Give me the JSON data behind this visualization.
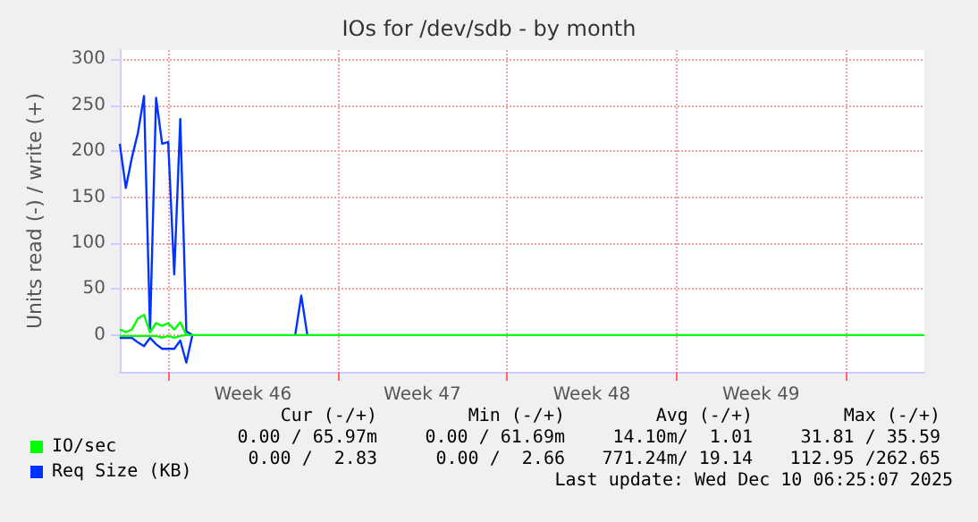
{
  "chart_data": {
    "type": "line",
    "title": "IOs for /dev/sdb - by month",
    "ylabel": "Units read (-) / write (+)",
    "categories": [
      null,
      null,
      null,
      null,
      null,
      null,
      null,
      null,
      null,
      null,
      null,
      null,
      null,
      null,
      null,
      null,
      null,
      null,
      null,
      null,
      null,
      null,
      "Week 46",
      null,
      null,
      null,
      null,
      null,
      null,
      null,
      null,
      null,
      null,
      null,
      null,
      null,
      null,
      null,
      null,
      null,
      null,
      null,
      null,
      null,
      null,
      null,
      null,
      null,
      null,
      null,
      "Week 47",
      null,
      null,
      null,
      null,
      null,
      null,
      null,
      null,
      null,
      null,
      null,
      null,
      null,
      null,
      null,
      null,
      null,
      null,
      null,
      null,
      null,
      null,
      null,
      null,
      null,
      null,
      null,
      "Week 48",
      null,
      null,
      null,
      null,
      null,
      null,
      null,
      null,
      null,
      null,
      null,
      null,
      null,
      null,
      null,
      null,
      null,
      null,
      null,
      null,
      null,
      null,
      null,
      null,
      null,
      null,
      null,
      "Week 49",
      null,
      null,
      null,
      null,
      null,
      null,
      null,
      null,
      null,
      null,
      null,
      null,
      null,
      null,
      null,
      null,
      null,
      null,
      null,
      null,
      null,
      null,
      null,
      null,
      null,
      null,
      null
    ],
    "ylim": [
      -40,
      310
    ],
    "yticks": [
      0,
      50,
      100,
      150,
      200,
      250,
      300
    ],
    "grid": true,
    "legend": "bottom left",
    "marker": "none",
    "line_style": "solid",
    "series": [
      {
        "name": "IO/sec",
        "color": "#00ff00",
        "values": [
          6,
          3,
          6,
          18,
          22,
          3,
          13,
          10,
          13,
          6,
          14,
          0,
          0,
          0,
          0,
          0,
          0,
          0,
          0,
          0,
          0,
          0,
          0,
          0,
          0,
          0,
          0,
          0,
          0,
          0,
          0,
          0,
          0,
          0,
          0,
          0,
          0,
          0,
          0,
          0,
          0,
          0,
          0,
          0,
          0,
          0,
          0,
          0,
          0,
          0,
          0,
          0,
          0,
          0,
          0,
          0,
          0,
          0,
          0,
          0,
          0,
          0,
          0,
          0,
          0,
          0,
          0,
          0,
          0,
          0,
          0,
          0,
          0,
          0,
          0,
          0,
          0,
          0,
          0,
          0,
          0,
          0,
          0,
          0,
          0,
          0,
          0,
          0,
          0,
          0,
          0,
          0,
          0,
          0,
          0,
          0,
          0,
          0,
          0,
          0,
          0,
          0,
          0,
          0,
          0,
          0,
          0,
          0,
          0,
          0,
          0,
          0,
          0,
          0,
          0,
          0,
          0,
          0,
          0,
          0,
          0,
          0,
          0,
          0,
          0,
          0,
          0,
          0,
          0,
          0,
          0,
          0,
          0,
          0
        ]
      },
      {
        "color": "#00ff00",
        "values": [
          -1,
          -1,
          -1,
          -1,
          -1,
          -1,
          -1,
          -3,
          -1,
          -3,
          -1,
          0,
          null,
          null,
          null,
          null,
          null,
          null,
          null,
          null,
          null,
          null,
          null,
          null,
          null,
          null,
          null,
          null,
          null,
          null,
          null,
          null,
          null,
          null,
          null,
          null,
          null,
          null,
          null,
          null,
          null,
          null,
          null,
          null,
          null,
          null,
          null,
          null,
          null,
          null,
          null,
          null,
          null,
          null,
          null,
          null,
          null,
          null,
          null,
          null,
          null,
          null,
          null,
          null,
          null,
          null,
          null,
          null,
          null,
          null,
          null,
          null,
          null,
          null,
          null,
          null,
          null,
          null,
          null,
          null,
          null,
          null,
          null,
          null,
          null,
          null,
          null,
          null,
          null,
          null,
          null,
          null,
          null,
          null,
          null,
          null,
          null,
          null,
          null,
          null,
          null,
          null,
          null,
          null,
          null,
          null,
          null,
          null,
          null,
          null,
          null,
          null,
          null,
          null,
          null,
          null,
          null,
          null,
          null,
          null,
          null,
          null,
          null,
          null,
          null,
          null,
          null,
          null,
          null,
          null,
          null,
          null,
          null,
          null
        ]
      },
      {
        "name": "Req Size (KB)",
        "color": "#0033ff",
        "values": [
          208,
          160,
          193,
          220,
          260,
          4,
          258,
          208,
          210,
          66,
          235,
          4,
          0,
          null,
          null,
          null,
          null,
          null,
          null,
          null,
          null,
          null,
          null,
          null,
          null,
          null,
          null,
          null,
          null,
          0,
          43,
          0,
          null,
          null,
          null,
          null,
          null,
          null,
          null,
          null,
          null,
          null,
          null,
          null,
          null,
          null,
          null,
          null,
          null,
          null,
          null,
          null,
          null,
          null,
          null,
          null,
          null,
          null,
          null,
          null,
          null,
          null,
          null,
          null,
          null,
          null,
          null,
          null,
          null,
          null,
          null,
          null,
          null,
          null,
          null,
          null,
          null,
          null,
          null,
          null,
          null,
          null,
          null,
          null,
          null,
          null,
          null,
          null,
          null,
          null,
          null,
          null,
          null,
          null,
          null,
          null,
          null,
          null,
          null,
          null,
          null,
          null,
          null,
          null,
          null,
          null,
          null,
          null,
          null,
          null,
          null,
          null,
          null,
          null,
          null,
          null,
          null,
          null,
          null,
          null,
          null,
          null,
          null,
          null,
          null,
          null,
          null,
          null,
          null,
          null,
          null,
          null,
          null,
          null
        ]
      },
      {
        "color": "#0033ff",
        "values": [
          -3,
          -3,
          -3,
          -8,
          -12,
          -3,
          -10,
          -15,
          -15,
          -15,
          -6,
          -30,
          0,
          null,
          null,
          null,
          null,
          null,
          null,
          null,
          null,
          null,
          null,
          null,
          null,
          null,
          null,
          null,
          null,
          null,
          null,
          null,
          null,
          null,
          null,
          null,
          null,
          null,
          null,
          null,
          null,
          null,
          null,
          null,
          null,
          null,
          null,
          null,
          null,
          null,
          null,
          null,
          null,
          null,
          null,
          null,
          null,
          null,
          null,
          null,
          null,
          null,
          null,
          null,
          null,
          null,
          null,
          null,
          null,
          null,
          null,
          null,
          null,
          null,
          null,
          null,
          null,
          null,
          null,
          null,
          null,
          null,
          null,
          null,
          null,
          null,
          null,
          null,
          null,
          null,
          null,
          null,
          null,
          null,
          null,
          null,
          null,
          null,
          null,
          null,
          null,
          null,
          null,
          null,
          null,
          null,
          null,
          null,
          null,
          null,
          null,
          null,
          null,
          null,
          null,
          null,
          null,
          null,
          null,
          null,
          null,
          null,
          null,
          null,
          null,
          null,
          null,
          null,
          null,
          null,
          null,
          null,
          null,
          null
        ]
      }
    ],
    "annotations": [
      "Cur (-/+)",
      "Min (-/+)",
      "Avg (-/+)",
      "Max (-/+)",
      "0.00 / 65.97m",
      "0.00 / 61.69m",
      "14.10m/  1.01",
      "31.81 / 35.59",
      "0.00 /  2.83",
      "0.00 /  2.66",
      "771.24m/ 19.14",
      "112.95 /262.65",
      "Last update: Wed Dec 10 06:25:07 2025"
    ]
  }
}
